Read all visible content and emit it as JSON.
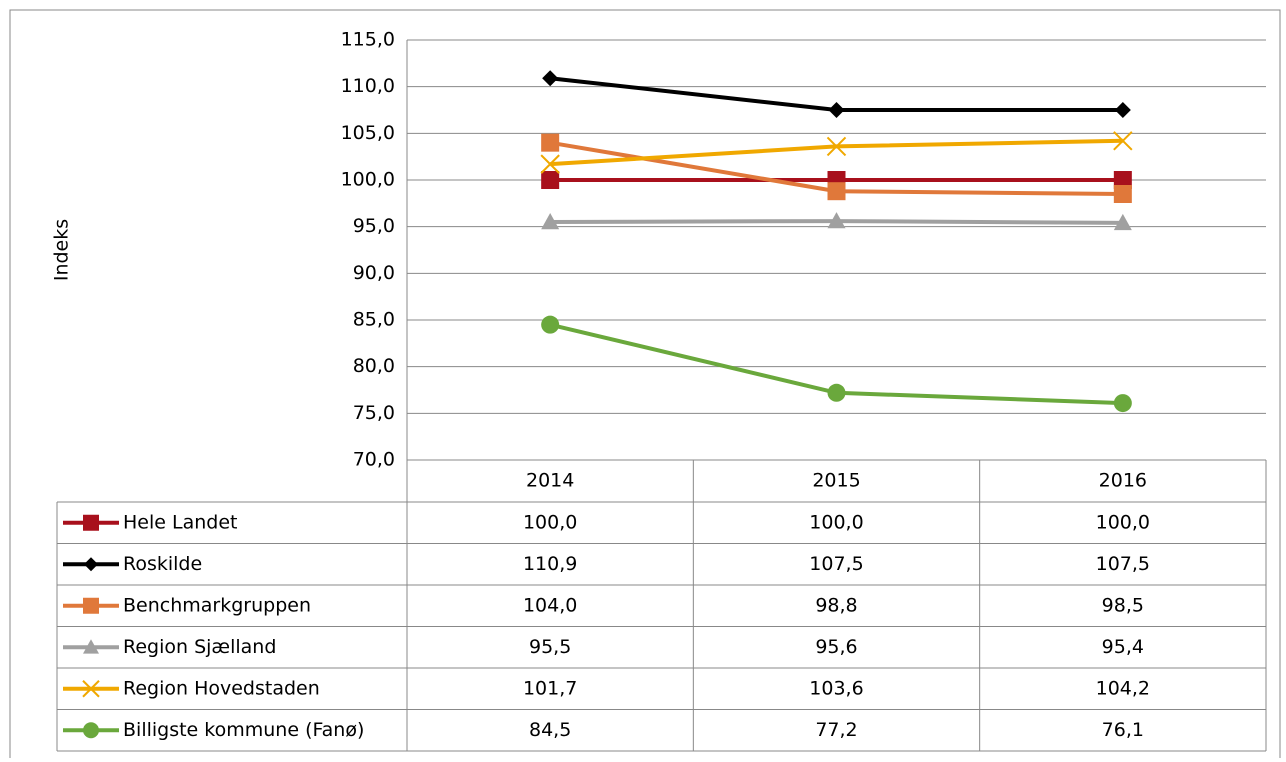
{
  "chart_data": {
    "type": "line",
    "ylabel": "Indeks",
    "categories": [
      "2014",
      "2015",
      "2016"
    ],
    "ylim": [
      70,
      115
    ],
    "yticks": [
      {
        "value": 70,
        "label": "70,0"
      },
      {
        "value": 75,
        "label": "75,0"
      },
      {
        "value": 80,
        "label": "80,0"
      },
      {
        "value": 85,
        "label": "85,0"
      },
      {
        "value": 90,
        "label": "90,0"
      },
      {
        "value": 95,
        "label": "95,0"
      },
      {
        "value": 100,
        "label": "100,0"
      },
      {
        "value": 105,
        "label": "105,0"
      },
      {
        "value": 110,
        "label": "110,0"
      },
      {
        "value": 115,
        "label": "115,0"
      }
    ],
    "grid": true,
    "series": [
      {
        "name": "Hele Landet",
        "color": "#a8101c",
        "marker": "square",
        "values": [
          100.0,
          100.0,
          100.0
        ],
        "value_labels": [
          "100,0",
          "100,0",
          "100,0"
        ]
      },
      {
        "name": "Roskilde",
        "color": "#000000",
        "marker": "diamond",
        "values": [
          110.9,
          107.5,
          107.5
        ],
        "value_labels": [
          "110,9",
          "107,5",
          "107,5"
        ]
      },
      {
        "name": "Benchmarkgruppen",
        "color": "#e0783a",
        "marker": "square",
        "values": [
          104.0,
          98.8,
          98.5
        ],
        "value_labels": [
          "104,0",
          "98,8",
          "98,5"
        ]
      },
      {
        "name": "Region Sjælland",
        "color": "#a0a0a0",
        "marker": "triangle",
        "values": [
          95.5,
          95.6,
          95.4
        ],
        "value_labels": [
          "95,5",
          "95,6",
          "95,4"
        ]
      },
      {
        "name": "Region Hovedstaden",
        "color": "#f0a800",
        "marker": "x",
        "values": [
          101.7,
          103.6,
          104.2
        ],
        "value_labels": [
          "101,7",
          "103,6",
          "104,2"
        ]
      },
      {
        "name": "Billigste kommune (Fanø)",
        "color": "#6aa83c",
        "marker": "circle",
        "values": [
          84.5,
          77.2,
          76.1
        ],
        "value_labels": [
          "84,5",
          "77,2",
          "76,1"
        ]
      }
    ]
  }
}
